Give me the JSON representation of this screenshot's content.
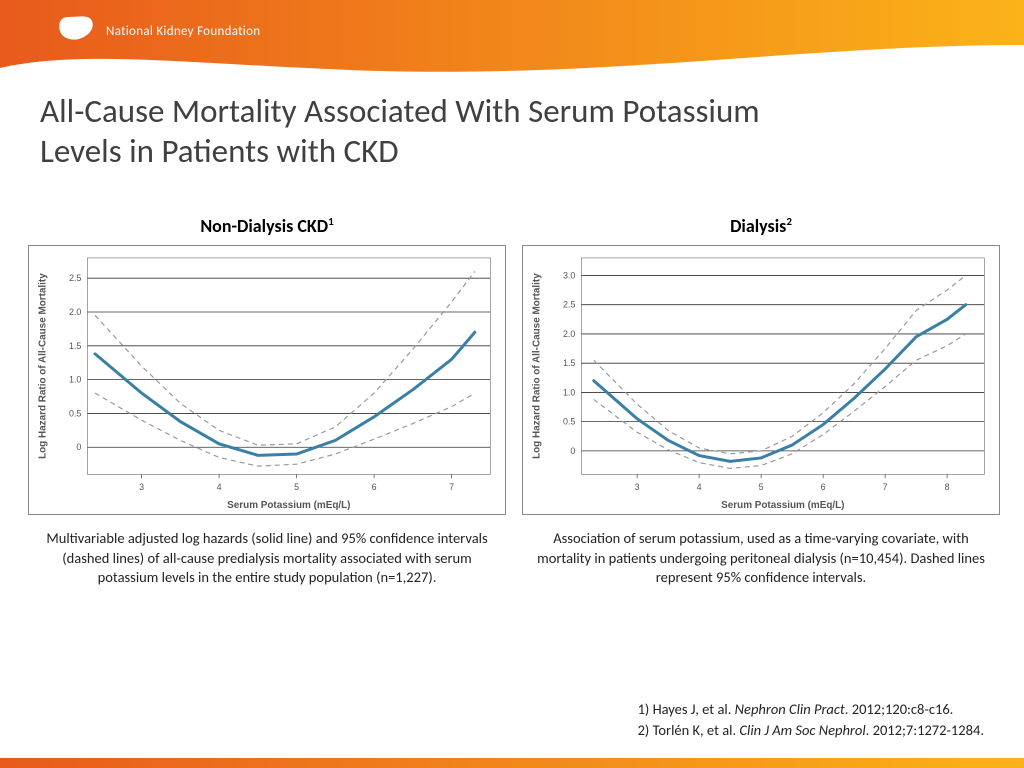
{
  "header": {
    "org_name": "National Kidney Foundation",
    "banner_gradient_start": "#e85a1c",
    "banner_gradient_end": "#fbb318",
    "logo_color": "#ffffff"
  },
  "title": "All-Cause Mortality Associated With Serum Potassium Levels in Patients with CKD",
  "chart_left": {
    "title": "Non-Dialysis CKD",
    "title_sup": "1",
    "xlabel": "Serum Potassium (mEq/L)",
    "ylabel": "Log Hazard Ratio of All-Cause Mortality",
    "x_ticks": [
      3,
      4,
      5,
      6,
      7
    ],
    "y_ticks": [
      0,
      0.5,
      1.0,
      1.5,
      2.0,
      2.5
    ],
    "x_range": [
      2.3,
      7.5
    ],
    "y_range": [
      -0.4,
      2.8
    ],
    "main_line": {
      "x": [
        2.4,
        3.0,
        3.5,
        4.0,
        4.5,
        5.0,
        5.5,
        6.0,
        6.5,
        7.0,
        7.3
      ],
      "y": [
        1.38,
        0.8,
        0.38,
        0.05,
        -0.12,
        -0.1,
        0.1,
        0.45,
        0.85,
        1.3,
        1.7
      ],
      "color": "#3a7fa6",
      "width": 3
    },
    "ci_upper": {
      "x": [
        2.4,
        3.0,
        3.5,
        4.0,
        4.5,
        5.0,
        5.5,
        6.0,
        6.5,
        7.0,
        7.3
      ],
      "y": [
        1.95,
        1.2,
        0.65,
        0.25,
        0.03,
        0.05,
        0.3,
        0.8,
        1.45,
        2.15,
        2.6
      ],
      "color": "#999999",
      "dash": true,
      "width": 1.2
    },
    "ci_lower": {
      "x": [
        2.4,
        3.0,
        3.5,
        4.0,
        4.5,
        5.0,
        5.5,
        6.0,
        6.5,
        7.0,
        7.3
      ],
      "y": [
        0.8,
        0.4,
        0.1,
        -0.15,
        -0.28,
        -0.25,
        -0.1,
        0.12,
        0.35,
        0.6,
        0.8
      ],
      "color": "#999999",
      "dash": true,
      "width": 1.2
    },
    "grid_color": "#333333",
    "axis_label_fontsize": 10,
    "tick_fontsize": 9,
    "caption": "Multivariable adjusted log hazards (solid line) and 95% confidence intervals (dashed lines) of all-cause predialysis mortality associated with serum potassium levels in the entire study population (n=1,227)."
  },
  "chart_right": {
    "title": "Dialysis",
    "title_sup": "2",
    "xlabel": "Serum Potassium (mEq/L)",
    "ylabel": "Log Hazard Ratio of All-Cause Mortality",
    "x_ticks": [
      3,
      4,
      5,
      6,
      7,
      8
    ],
    "y_ticks": [
      0,
      0.5,
      1.0,
      1.5,
      2.0,
      2.5,
      3.0
    ],
    "x_range": [
      2.1,
      8.6
    ],
    "y_range": [
      -0.4,
      3.3
    ],
    "main_line": {
      "x": [
        2.3,
        3.0,
        3.5,
        4.0,
        4.5,
        5.0,
        5.5,
        6.0,
        6.5,
        7.0,
        7.5,
        8.0,
        8.3
      ],
      "y": [
        1.2,
        0.55,
        0.18,
        -0.08,
        -0.18,
        -0.12,
        0.1,
        0.45,
        0.9,
        1.4,
        1.95,
        2.25,
        2.5
      ],
      "color": "#3a7fa6",
      "width": 3
    },
    "ci_upper": {
      "x": [
        2.3,
        3.0,
        3.5,
        4.0,
        4.5,
        5.0,
        5.5,
        6.0,
        6.5,
        7.0,
        7.5,
        8.0,
        8.3
      ],
      "y": [
        1.55,
        0.8,
        0.35,
        0.05,
        -0.05,
        0.0,
        0.25,
        0.65,
        1.15,
        1.75,
        2.4,
        2.75,
        3.0
      ],
      "color": "#999999",
      "dash": true,
      "width": 1.2
    },
    "ci_lower": {
      "x": [
        2.3,
        3.0,
        3.5,
        4.0,
        4.5,
        5.0,
        5.5,
        6.0,
        6.5,
        7.0,
        7.5,
        8.0,
        8.3
      ],
      "y": [
        0.88,
        0.32,
        0.02,
        -0.2,
        -0.3,
        -0.25,
        -0.05,
        0.28,
        0.68,
        1.1,
        1.55,
        1.8,
        2.0
      ],
      "color": "#999999",
      "dash": true,
      "width": 1.2
    },
    "grid_color": "#333333",
    "axis_label_fontsize": 10,
    "tick_fontsize": 9,
    "caption": "Association of serum potassium, used as a time-varying covariate, with mortality in patients undergoing peritoneal dialysis (n=10,454). Dashed lines represent 95% confidence intervals."
  },
  "refs": {
    "line1_pre": "1) Hayes J, et al. ",
    "line1_ital": "Nephron Clin Pract",
    "line1_post": ". 2012;120:c8-c16.",
    "line2_pre": "2) Torlén K, et al. ",
    "line2_ital": "Clin J Am Soc Nephrol",
    "line2_post": ". 2012;7:1272-1284."
  },
  "footer": {
    "gradient_start": "#e85a1c",
    "gradient_end": "#fbb318"
  }
}
